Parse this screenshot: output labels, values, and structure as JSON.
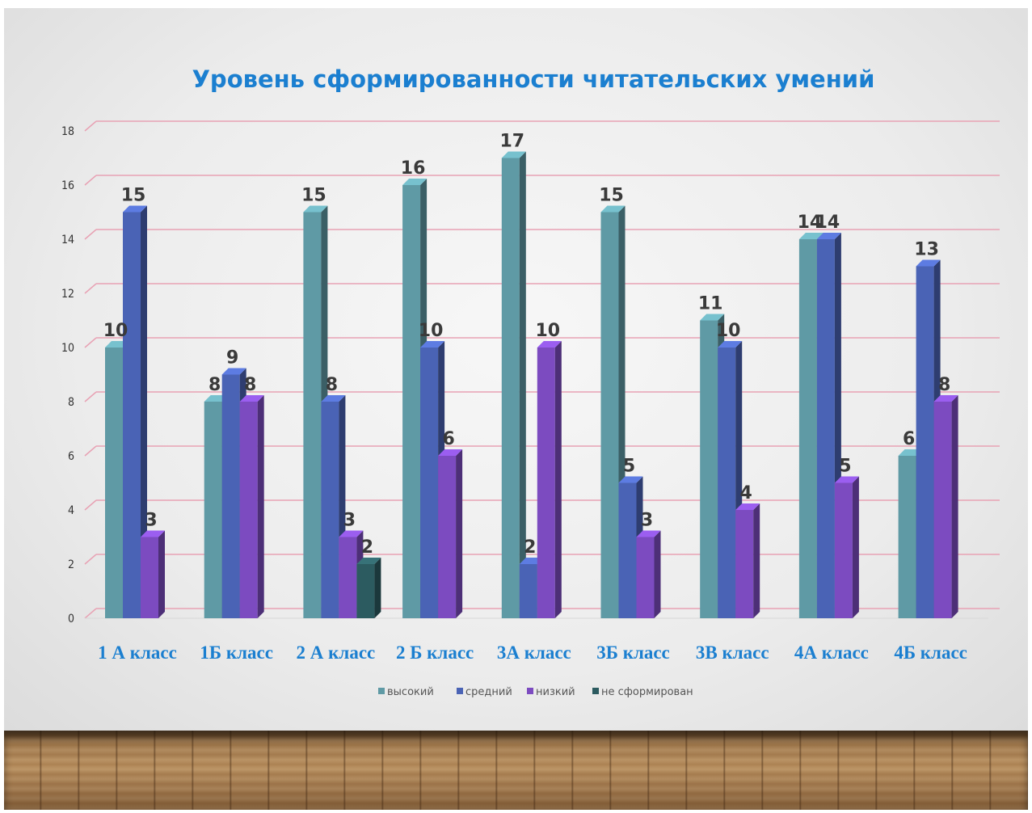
{
  "chart_data": {
    "type": "bar",
    "title": "Уровень сформированности читательских умений",
    "categories": [
      "1 А класс",
      "1Б класс",
      "2 А класс",
      "2 Б класс",
      "3А класс",
      "3Б класс",
      "3В класс",
      "4А класс",
      "4Б класс"
    ],
    "series": [
      {
        "name": "высокий",
        "color": "#5f9aa5",
        "values": [
          10,
          8,
          15,
          16,
          17,
          15,
          11,
          14,
          6
        ]
      },
      {
        "name": "средний",
        "color": "#4a63b5",
        "values": [
          15,
          9,
          8,
          10,
          2,
          5,
          10,
          14,
          13
        ]
      },
      {
        "name": "низкий",
        "color": "#7c4bc0",
        "values": [
          3,
          8,
          3,
          6,
          10,
          3,
          4,
          5,
          8
        ]
      },
      {
        "name": "не сформирован",
        "color": "#2c5b60",
        "values": [
          null,
          null,
          2,
          null,
          null,
          null,
          null,
          null,
          null
        ]
      }
    ],
    "ylim": [
      0,
      18
    ],
    "yticks": [
      0,
      2,
      4,
      6,
      8,
      10,
      12,
      14,
      16,
      18
    ],
    "grid": true,
    "legend": "bottom"
  }
}
